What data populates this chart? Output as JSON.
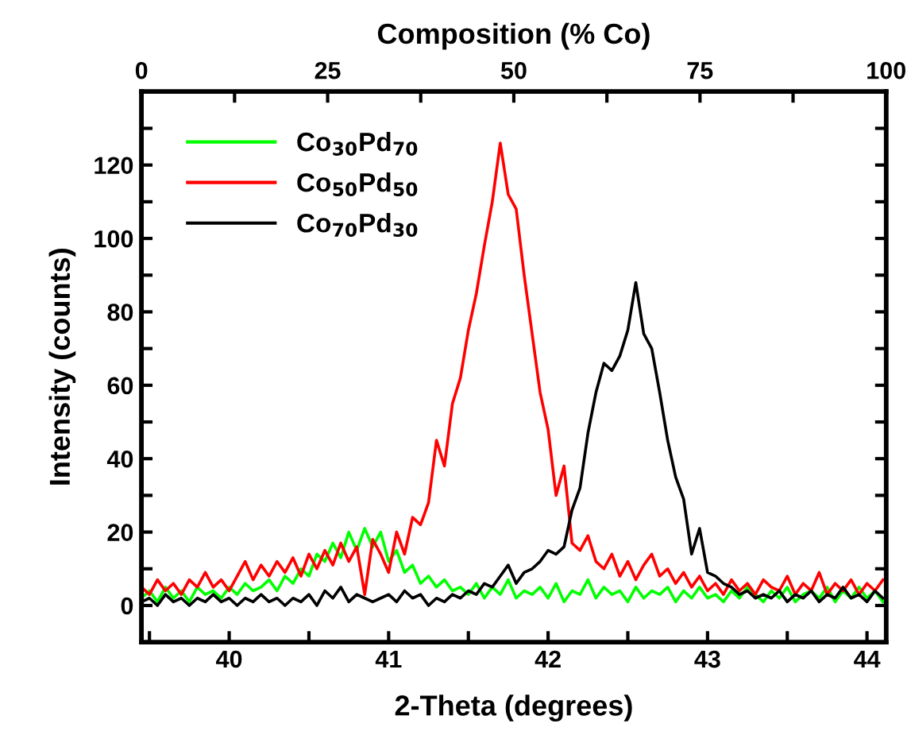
{
  "chart_data": {
    "type": "line",
    "xlabel": "2-Theta (degrees)",
    "ylabel": "Intensity (counts)",
    "x2label": "Composition (% Co)",
    "xlim": [
      39.45,
      44.12
    ],
    "ylim": [
      -10,
      140
    ],
    "x2lim": [
      0,
      100
    ],
    "xticks": [
      {
        "value": 39.5,
        "label": null
      },
      40,
      {
        "value": 40.5,
        "label": null
      },
      41,
      {
        "value": 41.5,
        "label": null
      },
      42,
      {
        "value": 42.5,
        "label": null
      },
      43,
      {
        "value": 43.5,
        "label": null
      },
      44
    ],
    "yticks": [
      {
        "value": -10,
        "label": null
      },
      0,
      {
        "value": 10,
        "label": null
      },
      20,
      {
        "value": 30,
        "label": null
      },
      40,
      {
        "value": 50,
        "label": null
      },
      60,
      {
        "value": 70,
        "label": null
      },
      80,
      {
        "value": 90,
        "label": null
      },
      100,
      {
        "value": 110,
        "label": null
      },
      120,
      {
        "value": 130,
        "label": null
      }
    ],
    "x2ticks": [
      0,
      {
        "value": 12.5,
        "label": null
      },
      25,
      {
        "value": 37.5,
        "label": null
      },
      50,
      {
        "value": 62.5,
        "label": null
      },
      75,
      {
        "value": 87.5,
        "label": null
      },
      100
    ],
    "grid": false,
    "legend": "top left",
    "x": [
      39.45,
      39.5,
      39.55,
      39.6,
      39.65,
      39.7,
      39.75,
      39.8,
      39.85,
      39.9,
      39.95,
      40.0,
      40.05,
      40.1,
      40.15,
      40.2,
      40.25,
      40.3,
      40.35,
      40.4,
      40.45,
      40.5,
      40.55,
      40.6,
      40.65,
      40.7,
      40.75,
      40.8,
      40.85,
      40.9,
      40.95,
      41.0,
      41.05,
      41.1,
      41.15,
      41.2,
      41.25,
      41.3,
      41.35,
      41.4,
      41.45,
      41.5,
      41.55,
      41.6,
      41.65,
      41.7,
      41.75,
      41.8,
      41.85,
      41.9,
      41.95,
      42.0,
      42.05,
      42.1,
      42.15,
      42.2,
      42.25,
      42.3,
      42.35,
      42.4,
      42.45,
      42.5,
      42.55,
      42.6,
      42.65,
      42.7,
      42.75,
      42.8,
      42.85,
      42.9,
      42.95,
      43.0,
      43.05,
      43.1,
      43.15,
      43.2,
      43.25,
      43.3,
      43.35,
      43.4,
      43.45,
      43.5,
      43.55,
      43.6,
      43.65,
      43.7,
      43.75,
      43.8,
      43.85,
      43.9,
      43.95,
      44.0,
      44.05,
      44.1
    ],
    "series": [
      {
        "name": "Co$_{30}$Pd$_{70}$",
        "color": "#00ff00",
        "values": [
          2,
          4,
          1,
          5,
          2,
          4,
          1,
          5,
          3,
          4,
          2,
          5,
          3,
          6,
          4,
          5,
          7,
          4,
          8,
          6,
          10,
          8,
          14,
          12,
          17,
          13,
          20,
          15,
          21,
          16,
          20,
          12,
          15,
          9,
          11,
          6,
          8,
          5,
          7,
          4,
          5,
          3,
          6,
          2,
          5,
          3,
          7,
          2,
          4,
          3,
          5,
          2,
          6,
          1,
          4,
          3,
          7,
          2,
          5,
          3,
          4,
          1,
          5,
          2,
          4,
          3,
          5,
          1,
          4,
          2,
          5,
          2,
          3,
          1,
          4,
          2,
          5,
          3,
          1,
          4,
          2,
          5,
          1,
          3,
          4,
          2,
          5,
          1,
          4,
          2,
          5,
          2,
          4,
          1
        ]
      },
      {
        "name": "Co$_{50}$Pd$_{50}$",
        "color": "#ff0000",
        "values": [
          5,
          3,
          7,
          4,
          6,
          3,
          7,
          5,
          9,
          5,
          7,
          4,
          8,
          12,
          7,
          11,
          8,
          12,
          9,
          13,
          8,
          14,
          10,
          15,
          11,
          17,
          12,
          16,
          3,
          18,
          14,
          9,
          20,
          14,
          24,
          22,
          28,
          45,
          38,
          55,
          62,
          75,
          85,
          98,
          110,
          126,
          112,
          108,
          90,
          74,
          58,
          48,
          30,
          38,
          17,
          15,
          19,
          12,
          10,
          14,
          8,
          12,
          7,
          11,
          14,
          8,
          10,
          6,
          9,
          5,
          8,
          4,
          6,
          3,
          7,
          4,
          6,
          3,
          7,
          5,
          4,
          8,
          3,
          6,
          4,
          9,
          3,
          6,
          4,
          7,
          3,
          6,
          4,
          7
        ]
      },
      {
        "name": "Co$_{70}$Pd$_{30}$",
        "color": "#000000",
        "values": [
          1,
          2,
          0,
          3,
          1,
          2,
          0,
          2,
          1,
          3,
          1,
          2,
          0,
          2,
          1,
          3,
          1,
          2,
          0,
          2,
          1,
          3,
          0,
          4,
          2,
          5,
          1,
          3,
          2,
          1,
          2,
          3,
          1,
          4,
          2,
          3,
          0,
          2,
          1,
          3,
          2,
          4,
          3,
          6,
          5,
          8,
          11,
          6,
          9,
          10,
          12,
          15,
          14,
          16,
          26,
          32,
          47,
          58,
          66,
          64,
          68,
          75,
          88,
          74,
          70,
          58,
          45,
          35,
          29,
          14,
          21,
          9,
          8,
          6,
          5,
          3,
          4,
          2,
          3,
          2,
          4,
          1,
          3,
          2,
          4,
          1,
          3,
          2,
          5,
          2,
          3,
          1,
          4,
          2
        ]
      }
    ]
  }
}
